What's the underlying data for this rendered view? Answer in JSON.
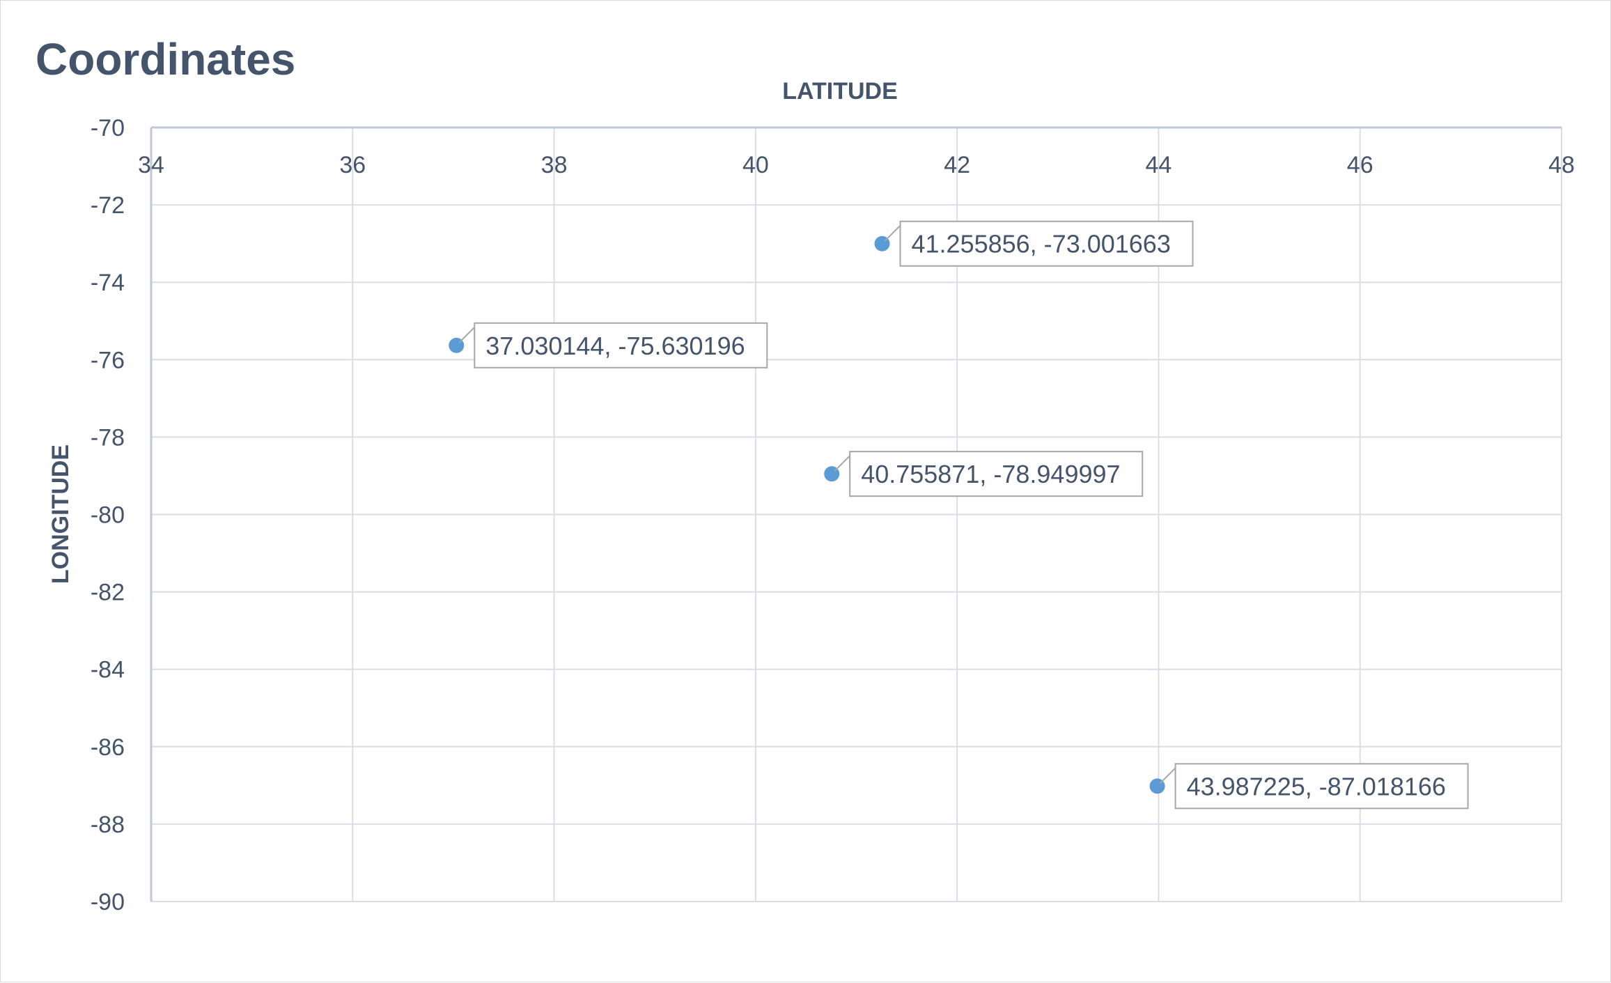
{
  "chart_data": {
    "type": "scatter",
    "title": "Coordinates",
    "xlabel": "LATITUDE",
    "ylabel": "LONGITUDE",
    "xlim": [
      34,
      48
    ],
    "ylim": [
      -90,
      -70
    ],
    "x_ticks": [
      "34",
      "36",
      "38",
      "40",
      "42",
      "44",
      "46",
      "48"
    ],
    "y_ticks": [
      "-70",
      "-72",
      "-74",
      "-76",
      "-78",
      "-80",
      "-82",
      "-84",
      "-86",
      "-88",
      "-90"
    ],
    "x_axis_position": "top",
    "grid": true,
    "legend": "none",
    "series": [
      {
        "points": [
          {
            "x": 41.255856,
            "y": -73.001663,
            "label": "41.255856, -73.001663"
          },
          {
            "x": 37.030144,
            "y": -75.630196,
            "label": "37.030144, -75.630196"
          },
          {
            "x": 40.755871,
            "y": -78.949997,
            "label": "40.755871, -78.949997"
          },
          {
            "x": 43.987225,
            "y": -87.018166,
            "label": "43.987225, -87.018166"
          }
        ]
      }
    ]
  },
  "colors": {
    "marker": "#5B9BD5",
    "text": "#44546A",
    "grid": "#D9DEE6",
    "axis": "#BFC8D6",
    "label_border": "#A6A6A6"
  }
}
